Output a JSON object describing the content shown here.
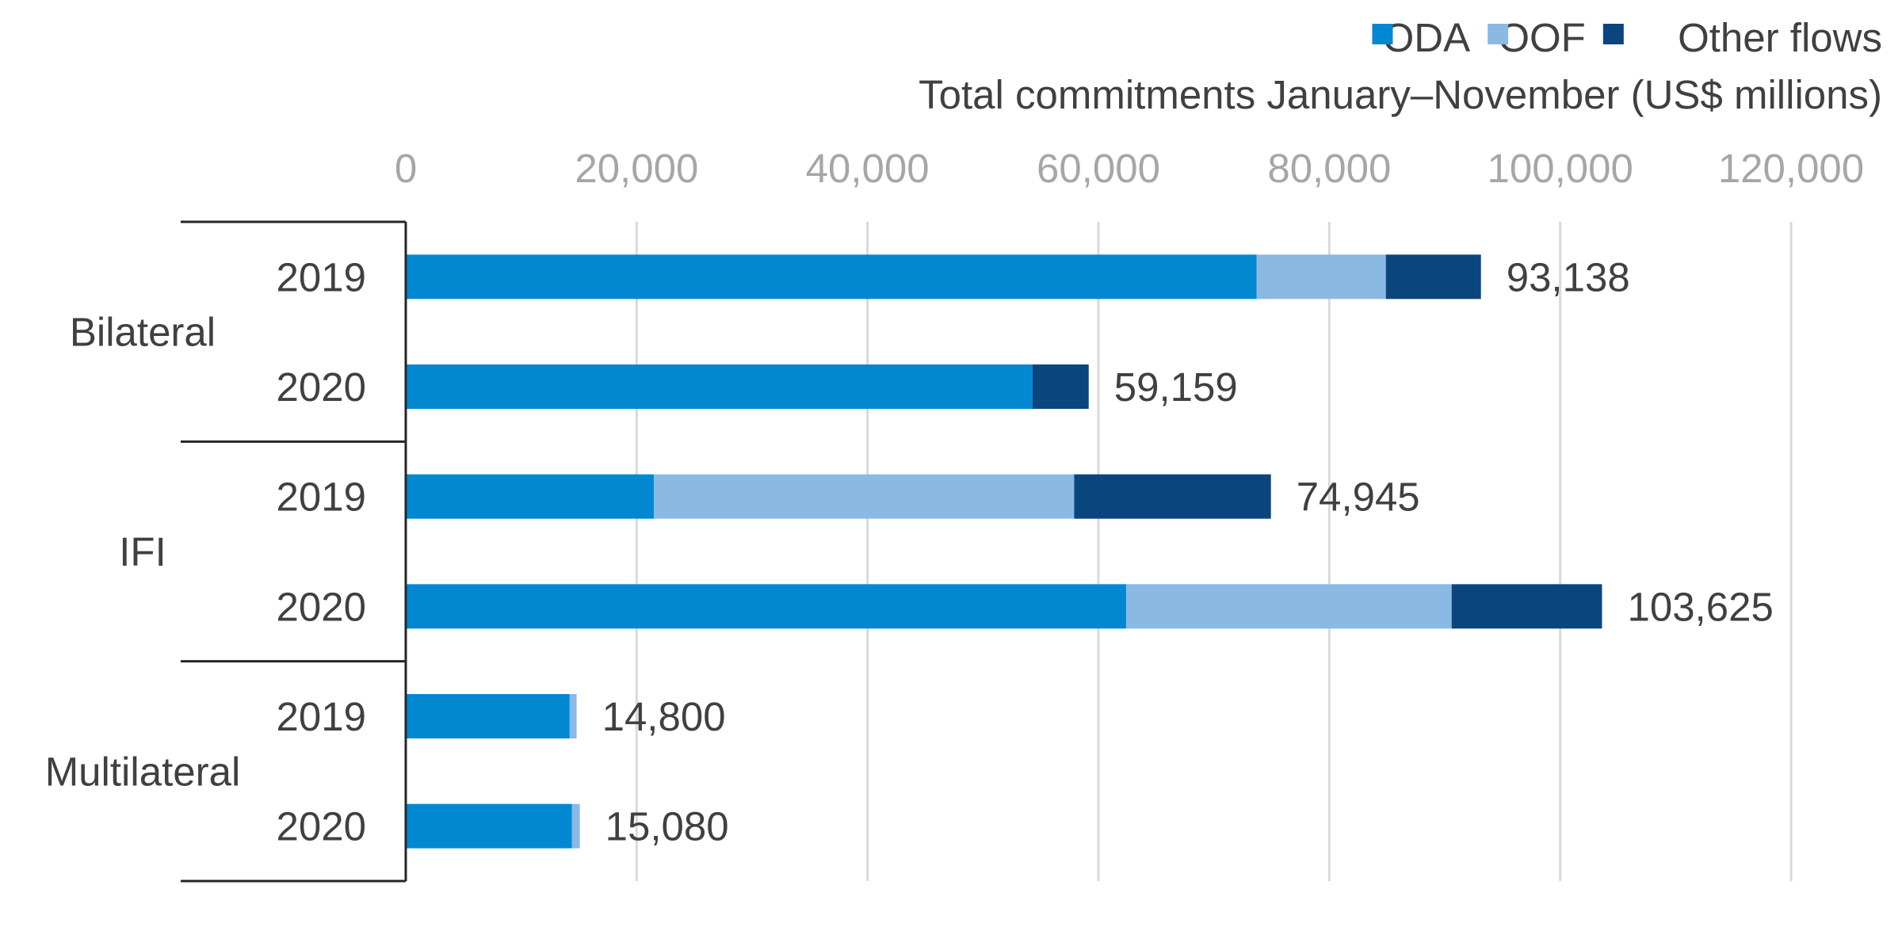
{
  "chart_data": {
    "type": "bar",
    "orientation": "horizontal",
    "stacked": true,
    "axis_title": "Total commitments January–November (US$ millions)",
    "xlim": [
      0,
      120000
    ],
    "x_ticks": [
      0,
      20000,
      40000,
      60000,
      80000,
      100000,
      120000
    ],
    "x_tick_labels": [
      "0",
      "20,000",
      "40,000",
      "60,000",
      "80,000",
      "100,000",
      "120,000"
    ],
    "x_axis_position": "top",
    "grid": "vertical",
    "legend_position": "top-right",
    "groups": [
      {
        "name": "Bilateral",
        "categories": [
          "2019",
          "2020"
        ]
      },
      {
        "name": "IFI",
        "categories": [
          "2019",
          "2020"
        ]
      },
      {
        "name": "Multilateral",
        "categories": [
          "2019",
          "2020"
        ]
      }
    ],
    "series": [
      {
        "name": "ODA",
        "color": "#0288d1",
        "values": [
          73700,
          54300,
          21500,
          62400,
          14200,
          14400
        ]
      },
      {
        "name": "OOF",
        "color": "#8ab9e3",
        "values": [
          11200,
          0,
          36400,
          28200,
          600,
          680
        ]
      },
      {
        "name": "Other flows",
        "color": "#0b457d",
        "values": [
          8238,
          4859,
          17045,
          13025,
          0,
          0
        ]
      }
    ],
    "totals": [
      93138,
      59159,
      74945,
      103625,
      14800,
      15080
    ],
    "total_labels": [
      "93,138",
      "59,159",
      "74,945",
      "103,625",
      "14,800",
      "15,080"
    ]
  },
  "colors": {
    "grid": "#d9d9d9",
    "axis_line": "#262626",
    "text": "#404040",
    "tick_text": "#a6a6a6"
  }
}
